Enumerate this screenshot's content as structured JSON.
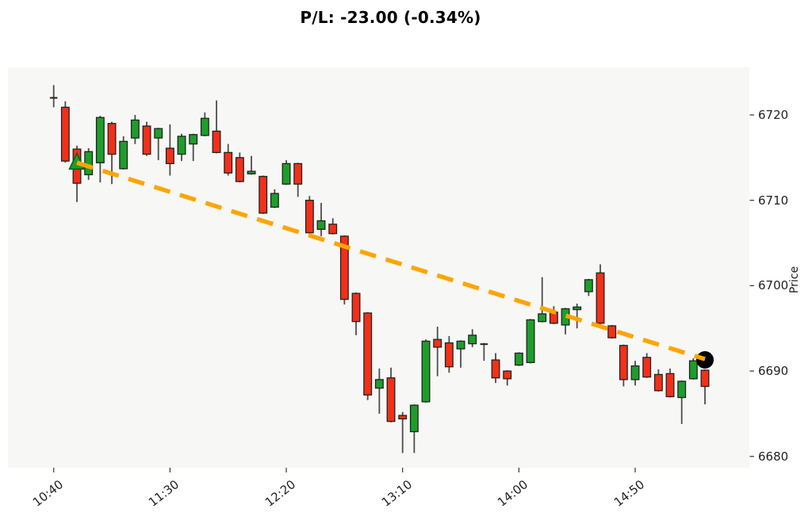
{
  "title": "P/L: -23.00 (-0.34%)",
  "axes": {
    "ylabel": "Price",
    "x_tick_labels": [
      "10:40",
      "11:30",
      "12:20",
      "13:10",
      "14:00",
      "14:50"
    ],
    "y_tick_labels": [
      "6680",
      "6690",
      "6700",
      "6710",
      "6720"
    ]
  },
  "colors": {
    "up": "#1d9e2b",
    "down": "#f23019",
    "candle_edge": "#222222",
    "wick": "#4d4d4d",
    "trendline": "#ffa500",
    "entry_marker_fill": "#1e9c28",
    "entry_marker_edge": "#0b5d14",
    "exit_marker": "#000000",
    "plot_bg": "#f7f7f5",
    "figure_bg": "#ffffff",
    "tick": "#333333",
    "text": "#1f1f1f"
  },
  "chart_data": {
    "type": "candlestick",
    "title": "P/L: -23.00 (-0.34%)",
    "ylabel": "Price",
    "ylim": [
      6679,
      6726
    ],
    "x_ticks": [
      "10:40",
      "11:30",
      "12:20",
      "13:10",
      "14:00",
      "14:50"
    ],
    "y_ticks": [
      6680,
      6690,
      6700,
      6710,
      6720
    ],
    "grid": false,
    "legend": "none",
    "columns": [
      "time",
      "open",
      "high",
      "low",
      "close"
    ],
    "candles": [
      [
        "10:40",
        6722.1,
        6723.5,
        6720.9,
        6721.9
      ],
      [
        "10:45",
        6720.9,
        6721.6,
        6714.4,
        6714.6
      ],
      [
        "10:50",
        6716.0,
        6716.4,
        6709.8,
        6712.0
      ],
      [
        "10:55",
        6713.0,
        6716.1,
        6712.4,
        6715.7
      ],
      [
        "11:00",
        6714.4,
        6719.9,
        6712.1,
        6719.7
      ],
      [
        "11:05",
        6719.0,
        6719.2,
        6711.9,
        6715.4
      ],
      [
        "11:10",
        6713.7,
        6717.5,
        6713.6,
        6716.9
      ],
      [
        "11:15",
        6717.3,
        6720.0,
        6716.6,
        6719.4
      ],
      [
        "11:20",
        6718.7,
        6719.2,
        6715.2,
        6715.4
      ],
      [
        "11:25",
        6717.3,
        6718.5,
        6714.7,
        6718.4
      ],
      [
        "11:30",
        6716.1,
        6718.9,
        6712.9,
        6714.3
      ],
      [
        "11:35",
        6715.4,
        6717.8,
        6714.6,
        6717.5
      ],
      [
        "11:40",
        6716.6,
        6717.8,
        6714.6,
        6717.7
      ],
      [
        "11:45",
        6717.6,
        6720.3,
        6717.5,
        6719.6
      ],
      [
        "11:50",
        6718.1,
        6721.7,
        6715.5,
        6715.6
      ],
      [
        "11:55",
        6715.6,
        6716.6,
        6712.9,
        6713.2
      ],
      [
        "12:00",
        6715.0,
        6715.6,
        6712.1,
        6712.2
      ],
      [
        "12:05",
        6713.1,
        6715.2,
        6713.0,
        6713.4
      ],
      [
        "12:10",
        6712.8,
        6712.9,
        6708.4,
        6708.5
      ],
      [
        "12:15",
        6709.2,
        6711.3,
        6709.1,
        6710.8
      ],
      [
        "12:20",
        6711.9,
        6714.7,
        6711.8,
        6714.3
      ],
      [
        "12:25",
        6714.3,
        6714.4,
        6710.4,
        6711.9
      ],
      [
        "12:30",
        6710.0,
        6710.5,
        6705.8,
        6706.2
      ],
      [
        "12:35",
        6706.6,
        6709.7,
        6705.8,
        6707.6
      ],
      [
        "12:40",
        6707.2,
        6707.9,
        6706.0,
        6706.1
      ],
      [
        "12:45",
        6705.8,
        6705.9,
        6697.8,
        6698.4
      ],
      [
        "12:50",
        6699.1,
        6699.2,
        6694.2,
        6695.8
      ],
      [
        "12:55",
        6696.8,
        6696.9,
        6686.6,
        6687.2
      ],
      [
        "13:00",
        6688.0,
        6690.3,
        6685.0,
        6689.0
      ],
      [
        "13:05",
        6689.2,
        6690.4,
        6684.0,
        6684.1
      ],
      [
        "13:10",
        6684.8,
        6685.2,
        6680.4,
        6684.4
      ],
      [
        "13:15",
        6682.9,
        6686.1,
        6680.4,
        6686.0
      ],
      [
        "13:20",
        6686.4,
        6693.7,
        6686.3,
        6693.5
      ],
      [
        "13:25",
        6693.7,
        6695.2,
        6689.4,
        6692.8
      ],
      [
        "13:30",
        6693.3,
        6694.1,
        6689.8,
        6690.5
      ],
      [
        "13:35",
        6692.6,
        6693.6,
        6690.4,
        6693.5
      ],
      [
        "13:40",
        6693.2,
        6694.9,
        6692.8,
        6694.2
      ],
      [
        "13:45",
        6693.2,
        6693.3,
        6691.2,
        6693.1
      ],
      [
        "13:50",
        6691.3,
        6692.1,
        6688.6,
        6689.2
      ],
      [
        "13:55",
        6690.0,
        6690.1,
        6688.3,
        6689.1
      ],
      [
        "14:00",
        6690.7,
        6692.2,
        6690.6,
        6692.1
      ],
      [
        "14:05",
        6691.0,
        6696.1,
        6690.9,
        6696.0
      ],
      [
        "14:10",
        6695.8,
        6701.0,
        6695.7,
        6696.7
      ],
      [
        "14:15",
        6696.9,
        6697.6,
        6695.5,
        6695.6
      ],
      [
        "14:20",
        6695.4,
        6697.4,
        6694.3,
        6697.3
      ],
      [
        "14:25",
        6697.2,
        6697.9,
        6695.0,
        6697.5
      ],
      [
        "14:30",
        6699.3,
        6700.8,
        6698.8,
        6700.7
      ],
      [
        "14:35",
        6701.5,
        6702.5,
        6695.5,
        6695.6
      ],
      [
        "14:40",
        6695.3,
        6695.4,
        6693.8,
        6693.9
      ],
      [
        "14:45",
        6693.0,
        6693.1,
        6688.2,
        6689.0
      ],
      [
        "14:50",
        6689.0,
        6691.2,
        6688.3,
        6690.6
      ],
      [
        "14:55",
        6691.6,
        6692.1,
        6689.2,
        6689.3
      ],
      [
        "15:00",
        6689.6,
        6690.2,
        6687.6,
        6687.7
      ],
      [
        "15:05",
        6689.7,
        6690.3,
        6686.9,
        6687.0
      ],
      [
        "15:10",
        6686.9,
        6688.9,
        6683.8,
        6688.8
      ],
      [
        "15:15",
        6689.1,
        6691.5,
        6689.0,
        6691.2
      ],
      [
        "15:20",
        6690.1,
        6690.2,
        6686.1,
        6688.2
      ]
    ],
    "annotations": {
      "trade": {
        "pl": "-23.00",
        "pl_pct": "-0.34%",
        "entry": {
          "time": "10:50",
          "price": 6714.4,
          "marker": "green-up-triangle"
        },
        "exit": {
          "time": "15:20",
          "price": 6691.4,
          "marker": "black-circle"
        }
      },
      "trendline": {
        "style": "dashed",
        "from": {
          "time": "10:50",
          "price": 6714.4
        },
        "to": {
          "time": "15:20",
          "price": 6691.4
        }
      }
    }
  }
}
